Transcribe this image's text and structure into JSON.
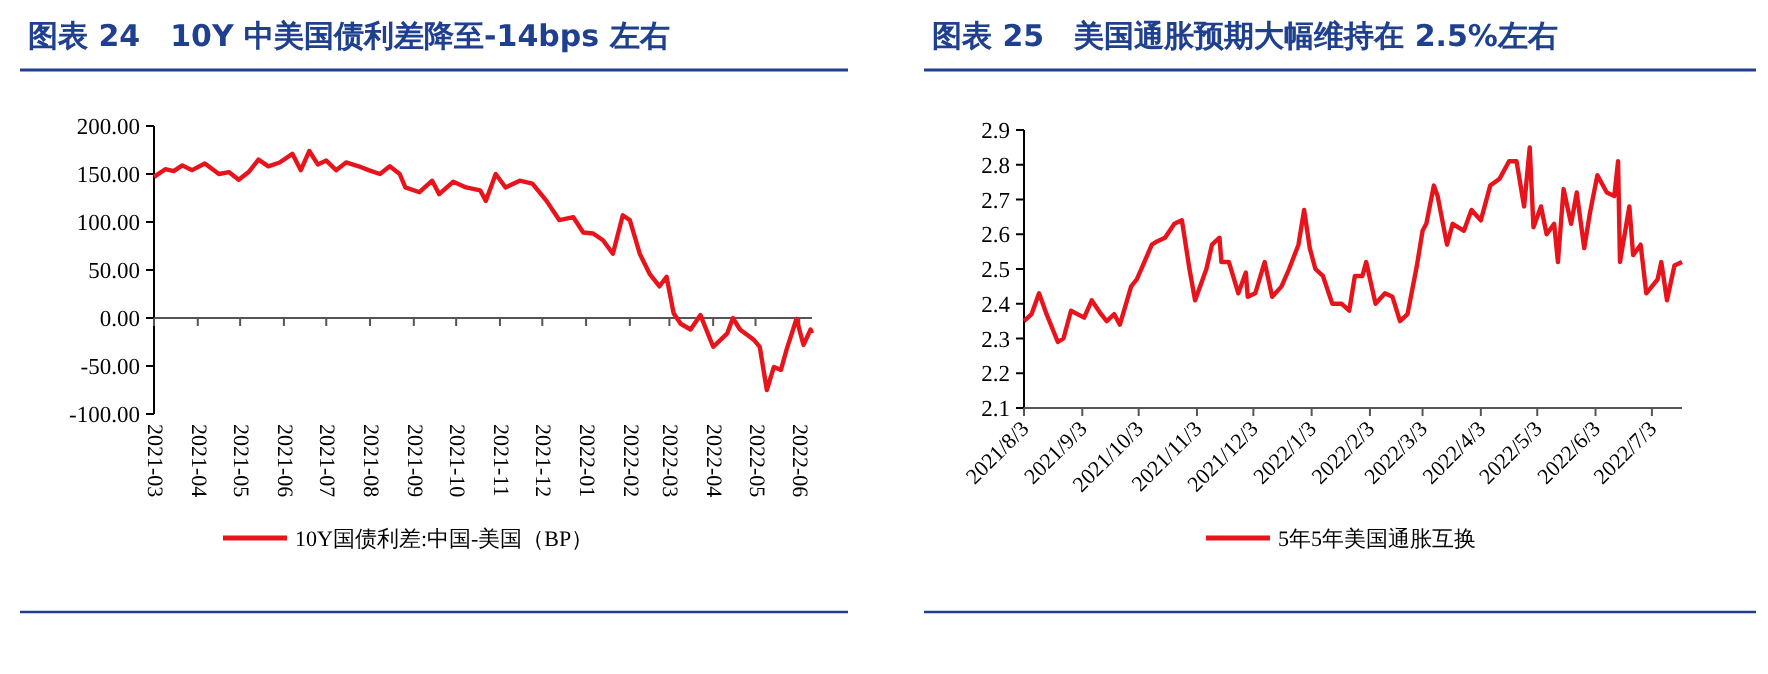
{
  "chart_data": [
    {
      "type": "line",
      "title": "图表 24　10Y 中美国债利差降至-14bps 左右",
      "legend": "bottom",
      "x": [
        "2021-03-01",
        "2021-03-09",
        "2021-03-15",
        "2021-03-21",
        "2021-03-28",
        "2021-04-06",
        "2021-04-16",
        "2021-04-23",
        "2021-04-30",
        "2021-05-07",
        "2021-05-14",
        "2021-05-21",
        "2021-05-29",
        "2021-06-07",
        "2021-06-13",
        "2021-06-19",
        "2021-06-25",
        "2021-07-01",
        "2021-07-08",
        "2021-07-15",
        "2021-07-24",
        "2021-07-31",
        "2021-08-08",
        "2021-08-15",
        "2021-08-22",
        "2021-08-26",
        "2021-09-05",
        "2021-09-14",
        "2021-09-19",
        "2021-09-29",
        "2021-10-08",
        "2021-10-18",
        "2021-10-22",
        "2021-10-29",
        "2021-11-05",
        "2021-11-15",
        "2021-11-24",
        "2021-12-04",
        "2021-12-13",
        "2021-12-23",
        "2021-12-30",
        "2022-01-06",
        "2022-01-13",
        "2022-01-20",
        "2022-01-27",
        "2022-02-01",
        "2022-02-08",
        "2022-02-15",
        "2022-02-22",
        "2022-02-27",
        "2022-03-04",
        "2022-03-09",
        "2022-03-16",
        "2022-03-23",
        "2022-04-01",
        "2022-04-11",
        "2022-04-15",
        "2022-04-20",
        "2022-04-30",
        "2022-05-04",
        "2022-05-09",
        "2022-05-14",
        "2022-05-19",
        "2022-05-23",
        "2022-05-30",
        "2022-06-04",
        "2022-06-09",
        "2022-06-10"
      ],
      "series": [
        {
          "name": "10Y国债利差:中国-美国（BP）",
          "color": "#e8141c",
          "values": [
            147,
            155,
            153,
            159,
            154,
            161,
            150,
            152,
            144,
            152,
            165,
            158,
            162,
            171,
            154,
            174,
            160,
            164,
            154,
            162,
            158,
            154,
            150,
            158,
            150,
            136,
            131,
            143,
            129,
            142,
            136,
            133,
            122,
            150,
            136,
            143,
            140,
            122,
            102,
            105,
            89,
            88,
            81,
            67,
            107,
            102,
            67,
            46,
            33,
            43,
            5,
            -6,
            -12,
            3,
            -30,
            -16,
            0,
            -12,
            -23,
            -30,
            -75,
            -51,
            -54,
            -33,
            -1,
            -28,
            -12,
            -16
          ]
        }
      ],
      "xlim": [
        "2021-03-01",
        "2022-06-10"
      ],
      "xticks": [
        "2021-03",
        "2021-04",
        "2021-05",
        "2021-06",
        "2021-07",
        "2021-08",
        "2021-09",
        "2021-10",
        "2021-11",
        "2021-12",
        "2022-01",
        "2022-02",
        "2022-03",
        "2022-04",
        "2022-05",
        "2022-06"
      ],
      "ylim": [
        -100,
        200
      ],
      "yticks": [
        {
          "value": -100,
          "label": "-100.00"
        },
        {
          "value": -50,
          "label": "-50.00"
        },
        {
          "value": 0,
          "label": "0.00"
        },
        {
          "value": 50,
          "label": "50.00"
        },
        {
          "value": 100,
          "label": "100.00"
        },
        {
          "value": 150,
          "label": "150.00"
        },
        {
          "value": 200,
          "label": "200.00"
        }
      ]
    },
    {
      "type": "line",
      "title": "图表 25　美国通胀预期大幅维持在 2.5%左右",
      "legend": "bottom",
      "x": [
        "2021-08-03",
        "2021-08-07",
        "2021-08-11",
        "2021-08-15",
        "2021-08-21",
        "2021-08-24",
        "2021-08-28",
        "2021-09-04",
        "2021-09-08",
        "2021-09-13",
        "2021-09-16",
        "2021-09-20",
        "2021-09-23",
        "2021-09-29",
        "2021-10-02",
        "2021-10-06",
        "2021-10-10",
        "2021-10-13",
        "2021-10-17",
        "2021-10-22",
        "2021-10-26",
        "2021-10-30",
        "2021-11-02",
        "2021-11-06",
        "2021-11-08",
        "2021-11-11",
        "2021-11-15",
        "2021-11-16",
        "2021-11-20",
        "2021-11-25",
        "2021-11-29",
        "2021-11-30",
        "2021-12-04",
        "2021-12-09",
        "2021-12-13",
        "2021-12-18",
        "2021-12-22",
        "2021-12-27",
        "2021-12-30",
        "2022-01-02",
        "2022-01-05",
        "2022-01-09",
        "2022-01-14",
        "2022-01-19",
        "2022-01-23",
        "2022-01-26",
        "2022-01-30",
        "2022-02-01",
        "2022-02-06",
        "2022-02-11",
        "2022-02-15",
        "2022-02-19",
        "2022-02-23",
        "2022-02-28",
        "2022-03-03",
        "2022-03-05",
        "2022-03-09",
        "2022-03-11",
        "2022-03-16",
        "2022-03-19",
        "2022-03-25",
        "2022-03-29",
        "2022-04-03",
        "2022-04-08",
        "2022-04-13",
        "2022-04-18",
        "2022-04-22",
        "2022-04-26",
        "2022-04-29",
        "2022-05-01",
        "2022-05-05",
        "2022-05-08",
        "2022-05-12",
        "2022-05-14",
        "2022-05-17",
        "2022-05-21",
        "2022-05-24",
        "2022-05-28",
        "2022-05-31",
        "2022-06-04",
        "2022-06-09",
        "2022-06-13",
        "2022-06-15",
        "2022-06-16",
        "2022-06-21",
        "2022-06-23",
        "2022-06-27",
        "2022-06-30",
        "2022-07-06",
        "2022-07-08",
        "2022-07-11",
        "2022-07-15",
        "2022-07-19"
      ],
      "series": [
        {
          "name": "5年5年美国通胀互换",
          "color": "#e8141c",
          "values": [
            2.35,
            2.37,
            2.43,
            2.37,
            2.29,
            2.3,
            2.38,
            2.36,
            2.41,
            2.37,
            2.35,
            2.37,
            2.34,
            2.45,
            2.47,
            2.52,
            2.57,
            2.58,
            2.59,
            2.63,
            2.64,
            2.5,
            2.41,
            2.47,
            2.5,
            2.57,
            2.59,
            2.52,
            2.52,
            2.43,
            2.49,
            2.42,
            2.43,
            2.52,
            2.42,
            2.45,
            2.5,
            2.57,
            2.67,
            2.56,
            2.5,
            2.48,
            2.4,
            2.4,
            2.38,
            2.48,
            2.48,
            2.52,
            2.4,
            2.43,
            2.42,
            2.35,
            2.37,
            2.51,
            2.61,
            2.63,
            2.74,
            2.71,
            2.57,
            2.63,
            2.61,
            2.67,
            2.64,
            2.74,
            2.76,
            2.81,
            2.81,
            2.68,
            2.85,
            2.62,
            2.68,
            2.6,
            2.63,
            2.52,
            2.73,
            2.63,
            2.72,
            2.56,
            2.66,
            2.77,
            2.72,
            2.71,
            2.81,
            2.52,
            2.68,
            2.54,
            2.57,
            2.43,
            2.47,
            2.52,
            2.41,
            2.51,
            2.52
          ]
        }
      ],
      "xlim": [
        "2021-08-03",
        "2022-07-19"
      ],
      "xticks": [
        {
          "value": "2021-08-03",
          "label": "2021/8/3"
        },
        {
          "value": "2021-09-03",
          "label": "2021/9/3"
        },
        {
          "value": "2021-10-03",
          "label": "2021/10/3"
        },
        {
          "value": "2021-11-03",
          "label": "2021/11/3"
        },
        {
          "value": "2021-12-03",
          "label": "2021/12/3"
        },
        {
          "value": "2022-01-03",
          "label": "2022/1/3"
        },
        {
          "value": "2022-02-03",
          "label": "2022/2/3"
        },
        {
          "value": "2022-03-03",
          "label": "2022/3/3"
        },
        {
          "value": "2022-04-03",
          "label": "2022/4/3"
        },
        {
          "value": "2022-05-03",
          "label": "2022/5/3"
        },
        {
          "value": "2022-06-03",
          "label": "2022/6/3"
        },
        {
          "value": "2022-07-03",
          "label": "2022/7/3"
        }
      ],
      "ylim": [
        2.1,
        2.9
      ],
      "yticks": [
        2.1,
        2.2,
        2.3,
        2.4,
        2.5,
        2.6,
        2.7,
        2.8,
        2.9
      ]
    }
  ]
}
